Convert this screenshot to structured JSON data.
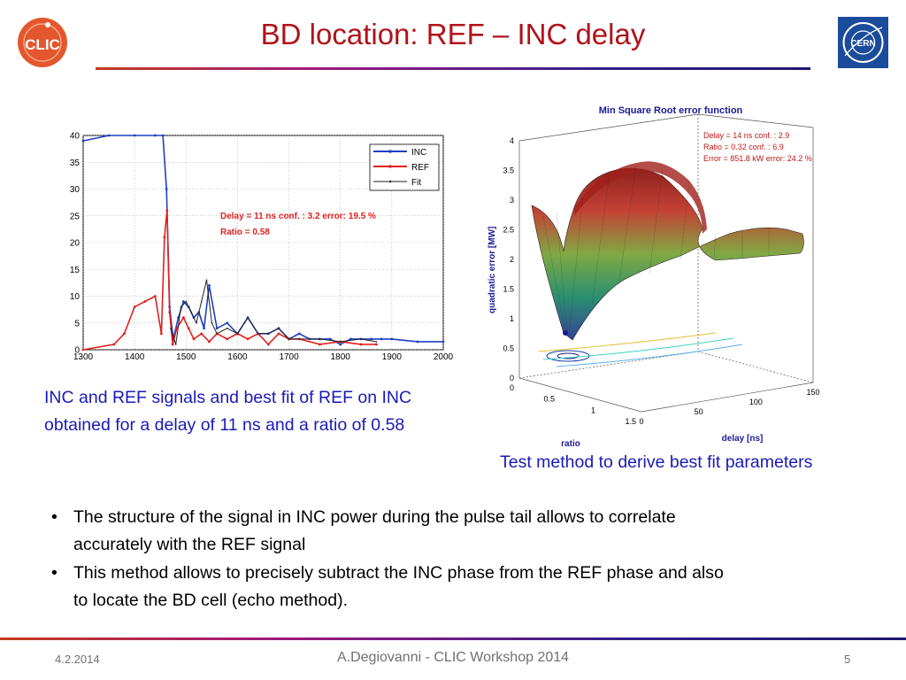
{
  "title": "BD location: REF – INC delay",
  "logos": {
    "left": "CLIC",
    "right": "CERN"
  },
  "left_plot": {
    "legend": [
      "INC",
      "REF",
      "Fit"
    ],
    "annotation_line1": "Delay = 11 ns  conf. : 3.2    error: 19.5 %",
    "annotation_line2": "Ratio  = 0.58",
    "caption_line1": "INC and REF signals and best fit of REF on INC",
    "caption_line2": "obtained for a delay of 11 ns and a ratio of 0.58"
  },
  "right_plot": {
    "title": "Min Square Root error function",
    "annotation_line1": "Delay = 14 ns  conf. : 2.9",
    "annotation_line2": "Ratio = 0.32    conf. : 6.9",
    "annotation_line3": "Error = 851.8 kW   error: 24.2 %",
    "zlabel": "quadratic error [MW]",
    "xlabel": "delay [ns]",
    "ylabel": "ratio",
    "caption": "Test method to derive best fit parameters"
  },
  "bullets": [
    {
      "line1": "The structure of the signal in INC power during the pulse tail allows to correlate",
      "line2": "accurately with the REF signal"
    },
    {
      "line1": "This method allows to precisely subtract the INC phase from the REF phase and also",
      "line2": "to locate the BD cell (echo method)."
    }
  ],
  "footer": {
    "date": "4.2.2014",
    "center": "A.Degiovanni - CLIC Workshop 2014",
    "page": "5"
  },
  "chart_data": [
    {
      "type": "line",
      "title": "",
      "xlim": [
        1300,
        2000
      ],
      "ylim": [
        0,
        40
      ],
      "xticks": [
        1300,
        1400,
        1500,
        1600,
        1700,
        1800,
        1900,
        2000
      ],
      "yticks": [
        0,
        5,
        10,
        15,
        20,
        25,
        30,
        35,
        40
      ],
      "legend_position": "top-right",
      "series": [
        {
          "name": "INC",
          "color": "#1f3fc4",
          "x": [
            1300,
            1350,
            1400,
            1440,
            1455,
            1462,
            1468,
            1475,
            1485,
            1495,
            1505,
            1515,
            1525,
            1535,
            1545,
            1560,
            1580,
            1600,
            1620,
            1640,
            1660,
            1680,
            1700,
            1720,
            1740,
            1760,
            1780,
            1800,
            1820,
            1840,
            1860,
            1880,
            1900,
            1950,
            2000
          ],
          "y": [
            39,
            40,
            40,
            40,
            40,
            30,
            8,
            2,
            6,
            9,
            8,
            6,
            7,
            4,
            12,
            4,
            5,
            3,
            6,
            3,
            3,
            4,
            2,
            3,
            2,
            2,
            2,
            1,
            2,
            2,
            2,
            2,
            2,
            1.5,
            1.5
          ]
        },
        {
          "name": "REF",
          "color": "#e02020",
          "x": [
            1300,
            1360,
            1380,
            1400,
            1420,
            1440,
            1452,
            1458,
            1463,
            1468,
            1474,
            1482,
            1495,
            1505,
            1515,
            1530,
            1545,
            1560,
            1580,
            1600,
            1620,
            1640,
            1660,
            1680,
            1700,
            1720,
            1760,
            1800,
            1840,
            1870
          ],
          "y": [
            0,
            1,
            3,
            8,
            9,
            10,
            3,
            21,
            26,
            7,
            1,
            4,
            6,
            4,
            2,
            3,
            1.5,
            3,
            2,
            3,
            2,
            3,
            1,
            3,
            2,
            2,
            1,
            1.5,
            1,
            1
          ]
        },
        {
          "name": "Fit",
          "color": "#222222",
          "x": [
            1470,
            1480,
            1490,
            1500,
            1510,
            1520,
            1530,
            1540,
            1550,
            1560,
            1580,
            1600,
            1620,
            1640,
            1660,
            1680,
            1700,
            1720,
            1760,
            1800,
            1840,
            1870
          ],
          "y": [
            4,
            1,
            8,
            9,
            7,
            5,
            9,
            13,
            5,
            3,
            4,
            3,
            6,
            3,
            3,
            4,
            2,
            2,
            2,
            1.5,
            2,
            1.5
          ]
        }
      ]
    },
    {
      "type": "surface",
      "title": "Min Square Root error function",
      "xlabel": "delay [ns]",
      "ylabel": "ratio",
      "zlabel": "quadratic error [MW]",
      "x_ticks": [
        0,
        50,
        100,
        150
      ],
      "y_ticks": [
        0,
        0.5,
        1,
        1.5
      ],
      "z_ticks": [
        0,
        0.5,
        1,
        1.5,
        2,
        2.5,
        3,
        3.5,
        4
      ],
      "minimum": {
        "delay": 14,
        "ratio": 0.32,
        "error_kW": 851.8
      }
    }
  ]
}
